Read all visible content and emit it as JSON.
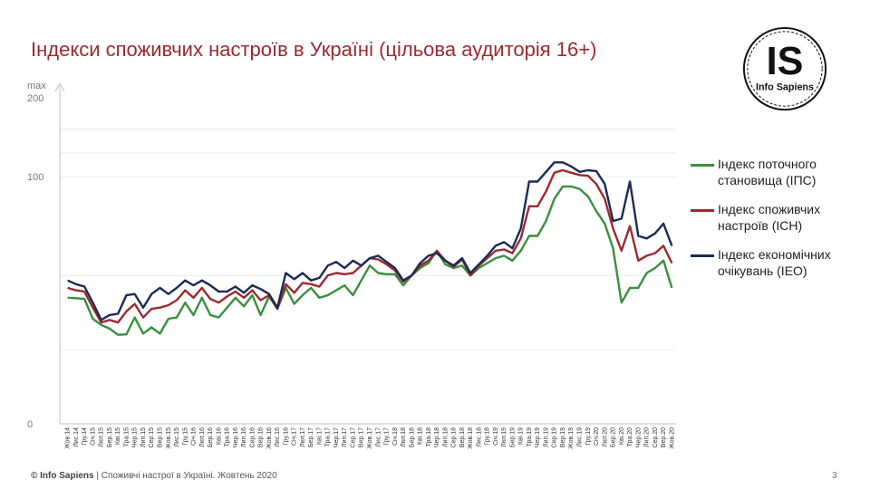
{
  "title": "Індекси споживчих настроїв в Україні (цільова аудиторія 16+)",
  "logo": {
    "big": "IS",
    "small": "Info Sapiens"
  },
  "footer": {
    "brand": "© Info Sapiens",
    "text": " | Споживчі настрої в Україні. Жовтень 2020"
  },
  "page_number": "3",
  "chart_data": {
    "type": "line",
    "title": "Індекси споживчих настроїв в Україні (цільова аудиторія 16+)",
    "y_axis": {
      "min": 0,
      "max": 200,
      "max_label": "max",
      "ticks": [
        0,
        100,
        200
      ],
      "scale": "compressed above 100"
    },
    "grid": true,
    "legend_position": "right",
    "x": [
      "Жов.14",
      "Лис.14",
      "Гру.14",
      "Січ.15",
      "Лют.15",
      "Бер.15",
      "Кві.15",
      "Тра.15",
      "Чер.15",
      "Лип.15",
      "Сер.15",
      "Вер.15",
      "Жов.15",
      "Лис.15",
      "Гру.15",
      "Січ.16",
      "Лют.16",
      "Бер.16",
      "Кві.16",
      "Тра.16",
      "Чер.16",
      "Лип.16",
      "Сер.16",
      "Вер.16",
      "Жов.16",
      "Лис.16",
      "Гру.16",
      "Січ.17",
      "Лют.17",
      "Бер.17",
      "Кві.17",
      "Тра.17",
      "Чер.17",
      "Лип.17",
      "Сер.17",
      "Вер.17",
      "Жов.17",
      "Лис.17",
      "Гру.17",
      "Січ.18",
      "Лют.18",
      "Бер.18",
      "Кві.18",
      "Тра.18",
      "Чер.18",
      "Лип.18",
      "Сер.18",
      "Вер.18",
      "Жов.18",
      "Лис.18",
      "Гру.18",
      "Січ.19",
      "Лют.19",
      "Бер.19",
      "Кві.19",
      "Тра.19",
      "Чер.19",
      "Лип.19",
      "Сер.19",
      "Вер.19",
      "Жов.19",
      "Лис.19",
      "Гру.19",
      "Січ.20",
      "Лют.20",
      "Бер.20",
      "Кві.20",
      "Тра.20",
      "Чер.20",
      "Лип.20",
      "Сер.20",
      "Вер.20",
      "Жов.20"
    ],
    "series": [
      {
        "name": "Індекс поточного становища (ІПС)",
        "color": "#3a8f3f",
        "values": [
          51,
          50.8,
          50.5,
          42.5,
          40,
          38.5,
          36,
          36.2,
          43,
          36.5,
          39,
          36.5,
          42.5,
          43,
          49,
          44,
          51,
          44,
          43,
          47,
          51,
          47.5,
          52,
          44,
          51.5,
          46.5,
          55,
          48.5,
          52,
          55,
          51,
          52,
          54,
          56,
          52,
          58,
          64,
          61,
          60.5,
          60.5,
          56,
          60,
          63,
          65,
          70,
          64.5,
          63,
          64,
          60,
          63,
          65,
          67,
          68,
          66,
          70,
          76,
          76,
          82,
          91,
          96,
          96,
          95,
          92,
          86,
          81,
          71,
          49,
          55,
          55,
          61,
          63,
          66,
          55
        ]
      },
      {
        "name": "Індекс споживчих настроїв (ІСН)",
        "color": "#9b2a2f",
        "values": [
          55,
          54,
          53.5,
          47,
          41,
          42,
          41,
          45.5,
          48.5,
          43,
          46.5,
          47,
          48,
          50,
          54,
          51,
          55,
          50.5,
          49,
          51.5,
          53.5,
          51,
          54,
          50,
          52,
          46.5,
          56.5,
          53,
          57,
          56.5,
          55.5,
          60,
          61,
          60.5,
          61,
          64,
          67,
          66.5,
          64.5,
          62,
          57.5,
          60,
          64,
          66,
          70,
          66,
          63.5,
          66.5,
          60,
          64,
          67,
          70,
          70.5,
          69,
          75,
          88,
          88,
          94,
          105,
          108,
          105,
          102,
          101,
          97,
          91,
          79,
          70,
          80,
          66,
          68,
          69,
          72,
          65
        ]
      },
      {
        "name": "Індекс економічних очікувань (ІЕО)",
        "color": "#1b2a55",
        "values": [
          58,
          56.5,
          55.5,
          49,
          42,
          44,
          44.5,
          52,
          52.5,
          47,
          52.5,
          55,
          52.5,
          55,
          58,
          56,
          58,
          56,
          53.5,
          53.5,
          55.5,
          53,
          56,
          54.5,
          52.5,
          47,
          61,
          58.5,
          61,
          58,
          59,
          64,
          65.5,
          63,
          66,
          64,
          67,
          68,
          65.5,
          63,
          58,
          60,
          65,
          68,
          69,
          66,
          64,
          67,
          61,
          64.5,
          68,
          72,
          73.5,
          71,
          79,
          98,
          98,
          106,
          118,
          118,
          113,
          106,
          108,
          107,
          97,
          82,
          83,
          98,
          76,
          75,
          77,
          81,
          72
        ]
      }
    ]
  }
}
